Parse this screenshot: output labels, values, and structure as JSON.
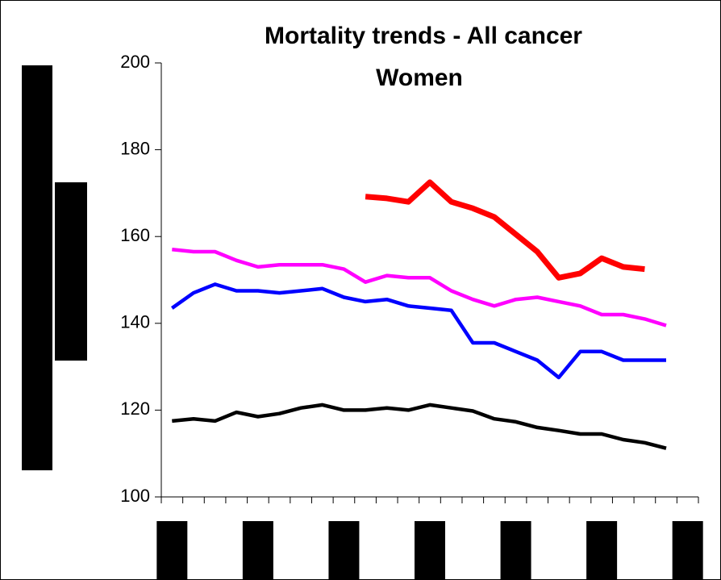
{
  "chart_data": {
    "type": "line",
    "title": "Mortality trends - All cancer",
    "subtitle": "Women",
    "categories": [
      null,
      null,
      null,
      null,
      null,
      null,
      null,
      null,
      null,
      null,
      null,
      null,
      null,
      null,
      null,
      null,
      null,
      null,
      null,
      null,
      null,
      null,
      null,
      null,
      null
    ],
    "series": [
      {
        "color": "#ff0000",
        "width": 7,
        "values": [
          null,
          null,
          null,
          null,
          null,
          null,
          null,
          null,
          null,
          169.2,
          168.8,
          168,
          172.5,
          168,
          166.5,
          164.5,
          160.5,
          156.5,
          150.5,
          151.5,
          155,
          153,
          152.5,
          null,
          null
        ]
      },
      {
        "color": "#ff00ff",
        "width": 4.5,
        "values": [
          157,
          156.5,
          156.5,
          154.5,
          153,
          153.5,
          153.5,
          153.5,
          152.5,
          149.5,
          151,
          150.5,
          150.5,
          147.5,
          145.5,
          144,
          145.5,
          146,
          145,
          144,
          142,
          142,
          141,
          139.5,
          null
        ]
      },
      {
        "color": "#0000ff",
        "width": 4.5,
        "values": [
          143.5,
          147,
          149,
          147.5,
          147.5,
          147,
          147.5,
          148,
          146,
          145,
          145.5,
          144,
          143.5,
          143,
          135.5,
          135.5,
          133.5,
          131.5,
          127.5,
          133.5,
          133.5,
          131.5,
          131.5,
          131.5,
          null
        ]
      },
      {
        "color": "#000000",
        "width": 4.5,
        "values": [
          117.5,
          118,
          117.5,
          119.5,
          118.5,
          119.2,
          120.5,
          121.2,
          120,
          120,
          120.5,
          120,
          121.2,
          120.5,
          119.8,
          118,
          117.3,
          116,
          115.3,
          114.5,
          114.5,
          113.2,
          112.5,
          111.2,
          null
        ]
      }
    ],
    "ylim": [
      100,
      200
    ],
    "yticks": [
      100,
      120,
      140,
      160,
      180,
      200
    ]
  }
}
